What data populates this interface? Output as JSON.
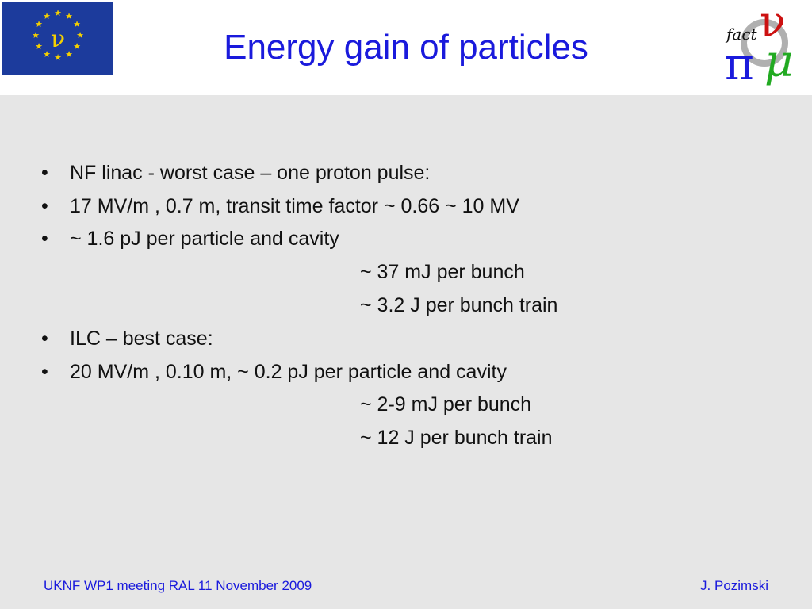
{
  "colors": {
    "title": "#1a1adc",
    "body_text": "#111111",
    "background": "#e6e6e6",
    "eu_flag_blue": "#1c3b9c",
    "eu_star_yellow": "#f5d000"
  },
  "logos": {
    "eu_symbol": "ν",
    "fact_text": "fact",
    "fact_nu": "ν",
    "fact_pi": "π",
    "fact_mu": "μ"
  },
  "title": "Energy gain of particles",
  "bullets": [
    {
      "bullet": "•",
      "text": "NF linac - worst case – one proton pulse:"
    },
    {
      "bullet": "•",
      "text": "17 MV/m , 0.7 m, transit time factor ~ 0.66 ~ 10 MV"
    },
    {
      "bullet": "•",
      "text": "~ 1.6 pJ per particle and cavity"
    },
    {
      "bullet": "",
      "text": "~ 37 mJ per bunch"
    },
    {
      "bullet": "",
      "text": "~ 3.2 J per bunch train"
    },
    {
      "bullet": "•",
      "text": "ILC – best case:"
    },
    {
      "bullet": "•",
      "text": "20 MV/m , 0.10 m, ~ 0.2 pJ per particle and cavity"
    },
    {
      "bullet": "",
      "text": "~ 2-9 mJ per bunch"
    },
    {
      "bullet": "",
      "text": "~ 12 J per bunch train"
    }
  ],
  "footer": {
    "left": "UKNF WP1 meeting RAL 11 November 2009",
    "right": "J. Pozimski"
  }
}
